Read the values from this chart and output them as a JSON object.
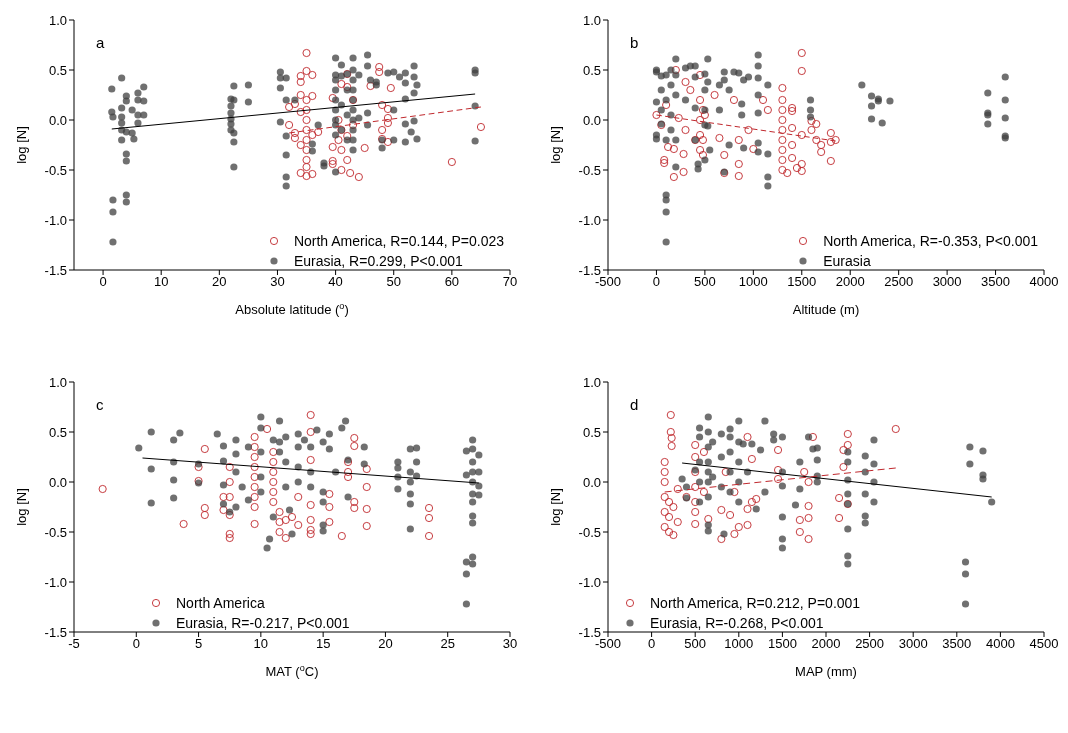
{
  "chart_data": [
    {
      "type": "scatter",
      "title": "a",
      "xlabel": "Absolute latitude ($^{o}$)",
      "ylabel": "log [N]",
      "xlim": [
        -5,
        70
      ],
      "xticks": [
        0,
        10,
        20,
        30,
        40,
        50,
        60,
        70
      ],
      "ylim": [
        -1.5,
        1.0
      ],
      "yticks": [
        {
          "value": -1.5,
          "label": "-1.5"
        },
        {
          "value": -1.0,
          "label": "-1.0"
        },
        {
          "value": -0.5,
          "label": "-0.5"
        },
        {
          "value": 0,
          "label": "0.0"
        },
        {
          "value": 0.5,
          "label": "0.5"
        },
        {
          "value": 1.0,
          "label": "1.0"
        }
      ],
      "legend": "bottom right",
      "grid": false,
      "series": [
        {
          "name": "North America, R=0.144, P=0.023",
          "color": "#c0282d",
          "marker": "circle",
          "x": [
            32,
            32,
            33,
            33,
            33,
            34,
            34,
            34,
            34,
            34,
            34,
            35,
            35,
            35,
            35,
            35,
            35,
            35,
            35,
            35,
            35,
            35,
            36,
            36,
            36,
            36,
            37,
            39.5,
            39.5,
            39.5,
            39.5,
            40.5,
            40.5,
            41,
            41,
            41,
            41,
            42,
            42,
            42,
            42,
            42.5,
            43,
            43,
            44,
            45,
            46,
            47.5,
            47.5,
            48,
            48,
            48,
            49,
            49,
            49,
            49,
            49.5,
            60,
            65
          ],
          "values": [
            0.13,
            -0.05,
            0.16,
            -0.13,
            -0.18,
            0.38,
            0.44,
            0.25,
            0.08,
            -0.25,
            -0.53,
            0.67,
            0.49,
            0.2,
            0.1,
            0,
            -0.1,
            -0.2,
            -0.3,
            -0.4,
            -0.47,
            -0.56,
            0.45,
            0.24,
            -0.15,
            -0.54,
            -0.12,
            0.22,
            -0.27,
            -0.41,
            -0.44,
            0,
            -0.2,
            0.36,
            -0.1,
            -0.3,
            -0.5,
            0.46,
            0.33,
            -0.16,
            -0.4,
            -0.53,
            0.2,
            -0.05,
            -0.57,
            -0.28,
            0.34,
            0.53,
            0.48,
            0.15,
            -0.1,
            -0.19,
            0.11,
            0.02,
            -0.03,
            -0.22,
            0.32,
            -0.42,
            -0.07
          ]
        },
        {
          "name": "Eurasia, R=0.299, P<0.001",
          "color": "#404040",
          "marker": "circle",
          "x": [
            1.5,
            1.5,
            1.7,
            1.7,
            1.7,
            1.7,
            3.2,
            3.2,
            3.2,
            3.2,
            3.2,
            3.2,
            4,
            4,
            4,
            4,
            4,
            4,
            4,
            5,
            5,
            5.3,
            6,
            6,
            6,
            6,
            7,
            7,
            7,
            22,
            22,
            22,
            22,
            22,
            22,
            22.5,
            22.5,
            22.5,
            22.5,
            22.5,
            25,
            25,
            30.5,
            30.5,
            30.5,
            30.5,
            31.5,
            31.5,
            31.5,
            31.5,
            31.5,
            31.5,
            33,
            36,
            36,
            37,
            38,
            38,
            40,
            40,
            40,
            40,
            40,
            40,
            40,
            40,
            40,
            40,
            41,
            41,
            41,
            41,
            42,
            42,
            42,
            42,
            43,
            43,
            43,
            43,
            43,
            43,
            43,
            43,
            43,
            43,
            44,
            44,
            45.5,
            45.5,
            45.5,
            45.5,
            46,
            47,
            47,
            48,
            48,
            49,
            50,
            50,
            50,
            51,
            52,
            52,
            52,
            52,
            52,
            53,
            53.5,
            53.5,
            53.5,
            53.5,
            54,
            54,
            64,
            64,
            64,
            64
          ],
          "values": [
            0.31,
            0.08,
            0.03,
            -0.8,
            -0.92,
            -1.22,
            0.42,
            0.12,
            0.03,
            -0.03,
            -0.2,
            -0.1,
            0.24,
            0.19,
            -0.12,
            -0.34,
            -0.41,
            -0.75,
            -0.82,
            0.1,
            -0.13,
            -0.19,
            0.27,
            0.2,
            0.05,
            -0.03,
            0.33,
            0.19,
            0.05,
            0.21,
            0.14,
            0.07,
            0.01,
            -0.04,
            -0.1,
            0.34,
            0.2,
            -0.13,
            -0.22,
            -0.47,
            0.35,
            0.18,
            0.48,
            0.42,
            0.32,
            -0.02,
            0.42,
            0.2,
            -0.16,
            -0.35,
            -0.57,
            -0.66,
            0.2,
            -0.24,
            -0.31,
            -0.05,
            -0.43,
            -0.46,
            0.62,
            0.45,
            0.4,
            0.3,
            0.2,
            0.1,
            0,
            -0.05,
            -0.15,
            -0.52,
            0.55,
            0.44,
            0.15,
            -0.1,
            0.46,
            0.3,
            0.05,
            -0.2,
            0.62,
            0.5,
            0.4,
            0.3,
            0.2,
            0.1,
            0,
            -0.1,
            -0.2,
            -0.3,
            0.45,
            0.02,
            0.65,
            0.54,
            0.07,
            -0.05,
            0.4,
            0.35,
            0.38,
            -0.2,
            -0.28,
            0.47,
            0.48,
            0.1,
            -0.2,
            0.43,
            0.47,
            0.37,
            0.21,
            -0.04,
            -0.22,
            -0.12,
            0.54,
            0.43,
            0.27,
            -0.01,
            0.35,
            -0.19,
            0.5,
            0.47,
            0.14,
            -0.21
          ]
        },
        {
          "type": "line",
          "color": "#000000",
          "line_style": "solid",
          "marker": "none",
          "x": [
            1.5,
            64
          ],
          "values": [
            -0.09,
            0.26
          ]
        },
        {
          "type": "line",
          "color": "#c0282d",
          "line_style": "dashed",
          "marker": "none",
          "x": [
            32,
            65
          ],
          "values": [
            -0.13,
            0.13
          ]
        }
      ]
    },
    {
      "type": "scatter",
      "title": "b",
      "xlabel": "Altitude (m)",
      "ylabel": "log [N]",
      "xlim": [
        -500,
        4000
      ],
      "xticks": [
        -500,
        0,
        500,
        1000,
        1500,
        2000,
        2500,
        3000,
        3500,
        4000
      ],
      "ylim": [
        -1.5,
        1.0
      ],
      "yticks": [
        {
          "value": -1.5,
          "label": "-1.5"
        },
        {
          "value": -1.0,
          "label": "-1.0"
        },
        {
          "value": -0.5,
          "label": "-0.5"
        },
        {
          "value": 0,
          "label": "0.0"
        },
        {
          "value": 0.5,
          "label": "0.5"
        },
        {
          "value": 1.0,
          "label": "1.0"
        }
      ],
      "legend": "bottom right",
      "grid": false,
      "series": [
        {
          "name": "North America, R=-0.353, P<0.001",
          "color": "#c0282d",
          "marker": "circle",
          "x": [
            0,
            50,
            80,
            80,
            100,
            120,
            180,
            180,
            200,
            230,
            280,
            280,
            300,
            300,
            350,
            400,
            450,
            450,
            450,
            450,
            450,
            480,
            480,
            480,
            500,
            600,
            650,
            700,
            700,
            800,
            850,
            850,
            850,
            950,
            1000,
            1100,
            1150,
            1300,
            1300,
            1300,
            1300,
            1300,
            1300,
            1300,
            1300,
            1300,
            1350,
            1400,
            1400,
            1400,
            1400,
            1400,
            1450,
            1500,
            1500,
            1500,
            1500,
            1500,
            1600,
            1600,
            1650,
            1650,
            1700,
            1700,
            1800,
            1800,
            1800,
            1850
          ],
          "values": [
            0.05,
            -0.05,
            -0.4,
            -0.43,
            0.15,
            -0.27,
            -0.57,
            -0.29,
            0.5,
            0.02,
            -0.34,
            -0.52,
            0.38,
            -0.1,
            0.3,
            -0.2,
            0.45,
            0.2,
            0,
            -0.15,
            -0.3,
            0.1,
            -0.2,
            -0.35,
            0.05,
            0.25,
            -0.18,
            -0.35,
            -0.53,
            0.2,
            -0.2,
            -0.44,
            -0.56,
            -0.1,
            -0.29,
            0.2,
            0.1,
            0.32,
            0.2,
            0.1,
            0,
            -0.1,
            -0.2,
            -0.3,
            -0.4,
            -0.5,
            -0.53,
            0.12,
            0.09,
            -0.08,
            -0.25,
            -0.38,
            -0.48,
            0.67,
            0.49,
            -0.15,
            -0.44,
            -0.51,
            -0.1,
            -0.01,
            -0.04,
            -0.2,
            -0.25,
            -0.32,
            -0.13,
            -0.22,
            -0.41,
            -0.2
          ]
        },
        {
          "name": "Eurasia",
          "color": "#404040",
          "marker": "circle",
          "x": [
            0,
            0,
            0,
            0,
            0,
            50,
            50,
            50,
            50,
            100,
            100,
            100,
            100,
            100,
            100,
            100,
            150,
            150,
            150,
            150,
            200,
            200,
            200,
            200,
            200,
            300,
            300,
            350,
            400,
            400,
            400,
            400,
            430,
            430,
            500,
            500,
            500,
            500,
            500,
            530,
            530,
            530,
            550,
            650,
            650,
            700,
            700,
            700,
            750,
            750,
            800,
            850,
            880,
            880,
            900,
            900,
            950,
            1050,
            1050,
            1050,
            1050,
            1050,
            1050,
            1050,
            1150,
            1150,
            1150,
            1150,
            1590,
            1590,
            1590,
            2120,
            2220,
            2220,
            2220,
            2290,
            2290,
            2330,
            2410,
            3420,
            3420,
            3420,
            3420,
            3600,
            3600,
            3600,
            3600,
            3600
          ],
          "values": [
            0.5,
            0.48,
            0.18,
            -0.15,
            -0.19,
            0.44,
            0.3,
            0.1,
            -0.04,
            0.45,
            0.2,
            -0.2,
            -0.75,
            -0.8,
            -0.92,
            -1.22,
            0.5,
            0.35,
            0.05,
            -0.1,
            0.61,
            0.45,
            0.25,
            -0.2,
            -0.47,
            0.52,
            0.2,
            0.54,
            0.54,
            0.43,
            0.12,
            -0.2,
            -0.44,
            -0.49,
            0.46,
            0.3,
            0.1,
            -0.05,
            -0.4,
            0.61,
            0.38,
            -0.06,
            -0.3,
            0.35,
            0.1,
            0.48,
            0.4,
            -0.52,
            0.3,
            -0.25,
            0.48,
            0.47,
            0.05,
            0.16,
            0.4,
            -0.28,
            0.43,
            0.65,
            0.54,
            0.42,
            0.25,
            0.07,
            -0.23,
            -0.32,
            0.35,
            -0.34,
            -0.57,
            -0.66,
            0.2,
            0.1,
            0.03,
            0.35,
            0.24,
            0.14,
            0.01,
            0.21,
            0.19,
            -0.03,
            0.19,
            0.27,
            0.07,
            0.05,
            -0.04,
            0.43,
            0.2,
            0.02,
            -0.16,
            -0.18
          ]
        },
        {
          "type": "line",
          "color": "#c0282d",
          "line_style": "dashed",
          "marker": "none",
          "x": [
            0,
            1850
          ],
          "values": [
            0.05,
            -0.21
          ]
        }
      ]
    },
    {
      "type": "scatter",
      "title": "c",
      "xlabel": "MAT ($^{o}$C)",
      "ylabel": "log [N]",
      "xlim": [
        -5,
        30
      ],
      "xticks": [
        -5,
        0,
        5,
        10,
        15,
        20,
        25,
        30
      ],
      "ylim": [
        -1.5,
        1.0
      ],
      "yticks": [
        {
          "value": -1.5,
          "label": "-1.5"
        },
        {
          "value": -1.0,
          "label": "-1.0"
        },
        {
          "value": -0.5,
          "label": "-0.5"
        },
        {
          "value": 0,
          "label": "0.0"
        },
        {
          "value": 0.5,
          "label": "0.5"
        },
        {
          "value": 1.0,
          "label": "1.0"
        }
      ],
      "legend": "bottom",
      "grid": false,
      "series": [
        {
          "name": "North America",
          "color": "#c0282d",
          "marker": "circle",
          "x": [
            -2.7,
            3.8,
            5,
            5,
            5.5,
            5.5,
            5.5,
            7,
            7,
            7.5,
            7.5,
            7.5,
            7.5,
            7.5,
            7.5,
            9.5,
            9.5,
            9.5,
            9.5,
            9.5,
            9.5,
            9.5,
            9.5,
            9.5,
            10.5,
            11,
            11,
            11,
            11,
            11,
            11,
            11.5,
            11.5,
            11.5,
            12,
            12,
            12.5,
            13,
            13,
            14,
            14,
            14,
            14,
            14,
            14,
            14,
            15.5,
            15.5,
            15.5,
            16.5,
            17,
            17,
            17,
            17.5,
            17.5,
            17.5,
            17.5,
            18.5,
            18.5,
            18.5,
            18.5,
            23.5,
            23.5,
            23.5
          ],
          "values": [
            -0.07,
            -0.42,
            0.15,
            0.01,
            0.33,
            -0.26,
            -0.33,
            -0.15,
            -0.28,
            -0.52,
            -0.56,
            0.15,
            0,
            -0.15,
            -0.33,
            0.45,
            0.35,
            0.25,
            0.15,
            0.05,
            -0.05,
            -0.15,
            -0.25,
            -0.42,
            0.53,
            0.3,
            0.2,
            0.1,
            0,
            -0.1,
            -0.2,
            -0.3,
            -0.4,
            -0.5,
            -0.56,
            -0.38,
            -0.35,
            -0.43,
            -0.15,
            0.67,
            0.5,
            0.22,
            -0.23,
            -0.38,
            -0.48,
            -0.52,
            -0.12,
            -0.25,
            -0.4,
            -0.54,
            0.2,
            0.1,
            0.05,
            0.44,
            0.36,
            -0.2,
            -0.26,
            0.13,
            -0.05,
            -0.27,
            -0.44,
            -0.26,
            -0.36,
            -0.54
          ]
        },
        {
          "name": "Eurasia, R=-0.217, P<0.001",
          "color": "#404040",
          "marker": "circle",
          "x": [
            0.2,
            1.2,
            1.2,
            1.2,
            3,
            3,
            3,
            3,
            3.5,
            5,
            5,
            6.5,
            7,
            7,
            7,
            7,
            7.5,
            8,
            8,
            8,
            8,
            8.5,
            9,
            9,
            10,
            10,
            10,
            10,
            10,
            10.5,
            10.7,
            11,
            11,
            11.5,
            11.5,
            11.5,
            12,
            12,
            12,
            12.3,
            12.5,
            13,
            13,
            13,
            13,
            13.5,
            14,
            14,
            14,
            14.5,
            15,
            15,
            15,
            15,
            15,
            15.5,
            15.5,
            16,
            16.5,
            16.8,
            17,
            17,
            18.3,
            18.3,
            21,
            21,
            21,
            21,
            22,
            22,
            22,
            22,
            22,
            22,
            22.5,
            22.5,
            22.5,
            26.5,
            26.5,
            26.5,
            26.5,
            26.5,
            27,
            27,
            27,
            27,
            27,
            27,
            27,
            27,
            27,
            27,
            27,
            27.5,
            27.5,
            27.5,
            27.5
          ],
          "values": [
            0.34,
            0.5,
            0.13,
            -0.21,
            0.42,
            0.2,
            0.02,
            -0.16,
            0.49,
            0.18,
            -0.01,
            0.48,
            0.36,
            0.21,
            -0.03,
            -0.22,
            -0.3,
            0.42,
            0.28,
            0.1,
            -0.25,
            -0.05,
            0.35,
            -0.18,
            0.65,
            0.54,
            0.3,
            0.05,
            -0.1,
            -0.66,
            -0.57,
            0.42,
            -0.35,
            0.61,
            0.4,
            0.3,
            0.45,
            0.2,
            -0.05,
            -0.28,
            -0.52,
            0.48,
            0.35,
            0.15,
            0,
            0.42,
            0.35,
            0.1,
            -0.05,
            0.52,
            0.4,
            -0.1,
            -0.2,
            -0.43,
            -0.49,
            0.48,
            0.33,
            0.1,
            0.54,
            0.61,
            0.22,
            -0.15,
            0.35,
            0.18,
            0.2,
            0.14,
            0.05,
            -0.07,
            0.33,
            0.1,
            0,
            -0.12,
            -0.22,
            -0.47,
            0.34,
            0.2,
            0.06,
            0.31,
            0.07,
            -0.8,
            -0.92,
            -1.22,
            0.42,
            0.33,
            0.2,
            0.1,
            0,
            -0.12,
            -0.2,
            -0.34,
            -0.41,
            -0.75,
            -0.82,
            0.27,
            0.1,
            -0.04,
            -0.13
          ]
        },
        {
          "type": "line",
          "color": "#000000",
          "line_style": "solid",
          "marker": "none",
          "x": [
            0.5,
            27.5
          ],
          "values": [
            0.24,
            -0.01
          ]
        }
      ]
    },
    {
      "type": "scatter",
      "title": "d",
      "xlabel": "MAP (mm)",
      "ylabel": "log [N]",
      "xlim": [
        -500,
        4500
      ],
      "xticks": [
        -500,
        0,
        500,
        1000,
        1500,
        2000,
        2500,
        3000,
        3500,
        4000,
        4500
      ],
      "ylim": [
        -1.5,
        1.0
      ],
      "yticks": [
        {
          "value": -1.5,
          "label": "-1.5"
        },
        {
          "value": -1.0,
          "label": "-1.0"
        },
        {
          "value": -0.5,
          "label": "-0.5"
        },
        {
          "value": 0,
          "label": "0.0"
        },
        {
          "value": 0.5,
          "label": "0.5"
        },
        {
          "value": 1.0,
          "label": "1.0"
        }
      ],
      "legend": "bottom left",
      "grid": false,
      "series": [
        {
          "name": "North America, R=0.212, P=0.001",
          "color": "#c0282d",
          "marker": "circle",
          "x": [
            150,
            150,
            150,
            150,
            150,
            150,
            200,
            200,
            200,
            220,
            220,
            230,
            230,
            250,
            250,
            300,
            300,
            400,
            500,
            500,
            500,
            500,
            500,
            500,
            500,
            600,
            600,
            650,
            800,
            800,
            850,
            900,
            950,
            950,
            1000,
            1100,
            1100,
            1100,
            1150,
            1150,
            1200,
            1450,
            1450,
            1450,
            1700,
            1700,
            1750,
            1800,
            1800,
            1800,
            1800,
            1850,
            2150,
            2150,
            2200,
            2200,
            2250,
            2250,
            2250,
            2800
          ],
          "values": [
            0.2,
            0.1,
            0,
            -0.15,
            -0.3,
            -0.45,
            -0.2,
            -0.35,
            -0.5,
            0.67,
            0.5,
            0.44,
            0.36,
            -0.53,
            -0.25,
            -0.07,
            -0.4,
            -0.15,
            0.37,
            0.25,
            0.1,
            -0.05,
            -0.2,
            -0.3,
            -0.42,
            0.3,
            -0.1,
            -0.37,
            -0.28,
            -0.57,
            0.1,
            -0.33,
            -0.52,
            -0.1,
            -0.45,
            -0.27,
            -0.43,
            0.45,
            0.23,
            -0.2,
            -0.17,
            0.32,
            0.03,
            0.12,
            -0.38,
            -0.5,
            0.1,
            -0.24,
            -0.36,
            -0.57,
            0,
            0.45,
            -0.16,
            -0.36,
            0.32,
            0.15,
            -0.22,
            0.48,
            0.37,
            0.53
          ]
        },
        {
          "name": "Eurasia, R=-0.268, P<0.001",
          "color": "#404040",
          "marker": "circle",
          "x": [
            350,
            400,
            400,
            500,
            550,
            550,
            550,
            550,
            550,
            650,
            650,
            650,
            650,
            650,
            650,
            650,
            650,
            650,
            700,
            700,
            800,
            800,
            800,
            830,
            900,
            900,
            900,
            900,
            900,
            1000,
            1000,
            1000,
            1000,
            1000,
            1050,
            1100,
            1150,
            1200,
            1250,
            1300,
            1300,
            1400,
            1400,
            1500,
            1500,
            1500,
            1500,
            1500,
            1500,
            1650,
            1700,
            1700,
            1800,
            1850,
            1900,
            1900,
            1900,
            1900,
            2250,
            2250,
            2250,
            2250,
            2250,
            2250,
            2250,
            2250,
            2450,
            2450,
            2450,
            2450,
            2450,
            2550,
            2550,
            2550,
            2550,
            3600,
            3600,
            3600,
            3650,
            3650,
            3800,
            3800,
            3800,
            3900
          ],
          "values": [
            0.03,
            -0.05,
            -0.16,
            0.12,
            0.54,
            0.45,
            0.2,
            0,
            -0.2,
            0.65,
            0.5,
            0.35,
            0.2,
            0.1,
            0,
            -0.15,
            -0.43,
            -0.49,
            0.4,
            0.05,
            0.48,
            0.25,
            -0.05,
            -0.52,
            0.53,
            0.45,
            0.3,
            0.1,
            -0.1,
            0.61,
            0.4,
            0.2,
            0,
            -0.2,
            0.38,
            0.1,
            0.38,
            -0.27,
            0.32,
            0.61,
            -0.1,
            0.48,
            0.42,
            0.45,
            0.1,
            -0.04,
            -0.35,
            -0.57,
            -0.66,
            -0.23,
            0.2,
            -0.07,
            0.45,
            0.33,
            0.34,
            0.22,
            0.06,
            0,
            0.3,
            0.2,
            0.02,
            -0.12,
            -0.22,
            -0.47,
            -0.74,
            -0.82,
            0.26,
            0.1,
            -0.12,
            -0.34,
            -0.41,
            0.42,
            0.18,
            0,
            -0.2,
            -0.8,
            -0.92,
            -1.22,
            0.35,
            0.18,
            0.31,
            0.07,
            0.03,
            -0.2
          ]
        },
        {
          "type": "line",
          "color": "#000000",
          "line_style": "solid",
          "marker": "none",
          "x": [
            350,
            3900
          ],
          "values": [
            0.19,
            -0.15
          ]
        },
        {
          "type": "line",
          "color": "#c0282d",
          "line_style": "dashed",
          "marker": "none",
          "x": [
            150,
            2800
          ],
          "values": [
            -0.1,
            0.14
          ]
        }
      ]
    }
  ]
}
